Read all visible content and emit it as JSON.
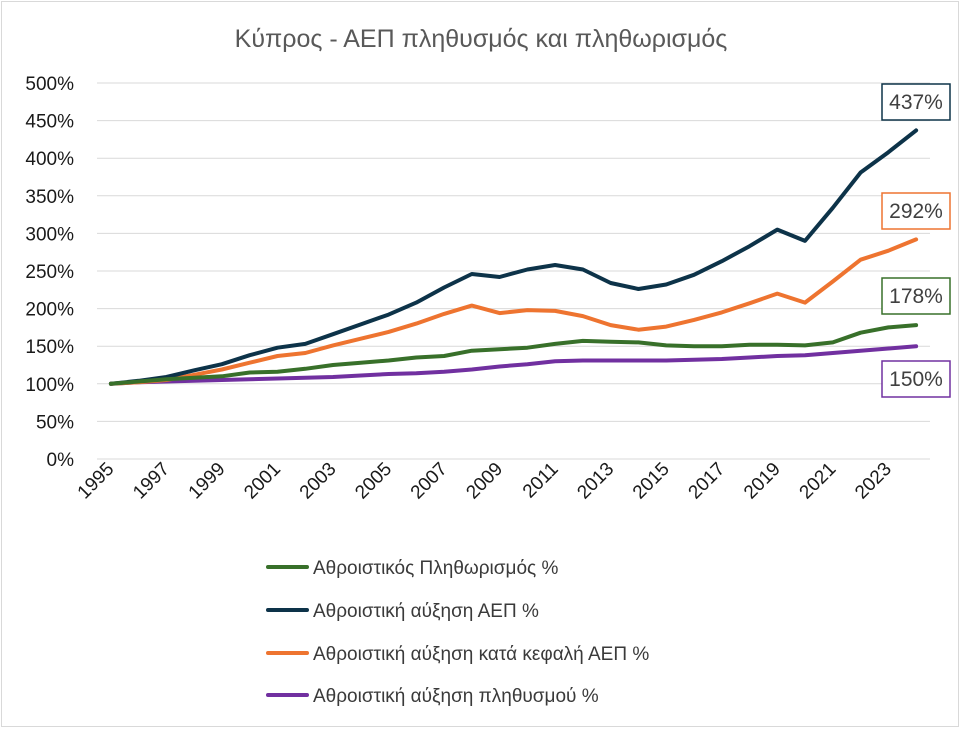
{
  "chart_data": {
    "type": "line",
    "title": "Κύπρος - ΑΕΠ πληθυσμός και πληθωρισμός",
    "y_ticks": [
      "0%",
      "50%",
      "100%",
      "150%",
      "200%",
      "250%",
      "300%",
      "350%",
      "400%",
      "450%",
      "500%"
    ],
    "ylim": [
      0,
      500
    ],
    "grid": true,
    "legend_position": "bottom",
    "x": [
      1995,
      1996,
      1997,
      1998,
      1999,
      2000,
      2001,
      2002,
      2003,
      2004,
      2005,
      2006,
      2007,
      2008,
      2009,
      2010,
      2011,
      2012,
      2013,
      2014,
      2015,
      2016,
      2017,
      2018,
      2019,
      2020,
      2021,
      2022,
      2023,
      2024
    ],
    "x_ticks": [
      "1995",
      "1997",
      "1999",
      "2001",
      "2003",
      "2005",
      "2007",
      "2009",
      "2011",
      "2013",
      "2015",
      "2017",
      "2019",
      "2021",
      "2023"
    ],
    "series": [
      {
        "name": "Αθροιστικός Πληθωρισμός %",
        "color": "#38702a",
        "values": [
          100,
          103,
          106,
          108,
          110,
          115,
          116,
          120,
          125,
          128,
          131,
          135,
          137,
          144,
          146,
          148,
          153,
          157,
          156,
          155,
          151,
          150,
          150,
          152,
          152,
          151,
          155,
          168,
          175,
          178
        ],
        "end_label": "178%"
      },
      {
        "name": "Αθροιστική αύξηση ΑΕΠ %",
        "color": "#0d3349",
        "values": [
          100,
          104,
          109,
          118,
          126,
          138,
          148,
          153,
          166,
          179,
          192,
          208,
          228,
          246,
          242,
          252,
          258,
          252,
          234,
          226,
          232,
          245,
          263,
          283,
          305,
          290,
          334,
          381,
          408,
          437
        ],
        "end_label": "437%"
      },
      {
        "name": "Αθροιστική αύξηση κατά κεφαλή ΑΕΠ %",
        "color": "#ee7430",
        "values": [
          100,
          102,
          105,
          112,
          119,
          128,
          137,
          141,
          151,
          160,
          169,
          180,
          193,
          204,
          194,
          198,
          197,
          190,
          178,
          172,
          176,
          185,
          195,
          207,
          220,
          208,
          236,
          265,
          277,
          292
        ],
        "end_label": "292%"
      },
      {
        "name": "Αθροιστική αύξηση πληθυσμού %",
        "color": "#7130a0",
        "values": [
          100,
          102,
          103,
          104,
          105,
          106,
          107,
          108,
          109,
          111,
          113,
          114,
          116,
          119,
          123,
          126,
          130,
          131,
          131,
          131,
          131,
          132,
          133,
          135,
          137,
          138,
          141,
          144,
          147,
          150
        ],
        "end_label": "150%"
      }
    ]
  }
}
